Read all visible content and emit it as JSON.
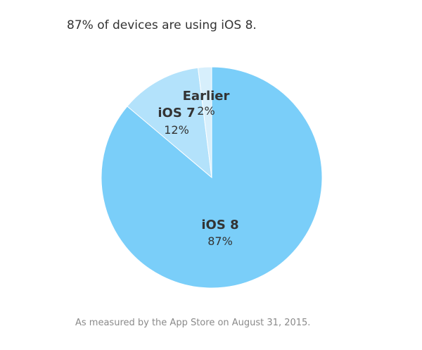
{
  "header": {
    "title": "87% of devices are using iOS 8."
  },
  "footer": {
    "note": "As measured by the App Store on August 31, 2015."
  },
  "chart_data": {
    "type": "pie",
    "title": "87% of devices are using iOS 8.",
    "slices": [
      {
        "label": "iOS 8",
        "value": 87,
        "display": "87%",
        "color": "#7acef9"
      },
      {
        "label": "iOS 7",
        "value": 12,
        "display": "12%",
        "color": "#b3e2fb"
      },
      {
        "label": "Earlier",
        "value": 2,
        "display": "2%",
        "color": "#d7effc"
      }
    ]
  }
}
